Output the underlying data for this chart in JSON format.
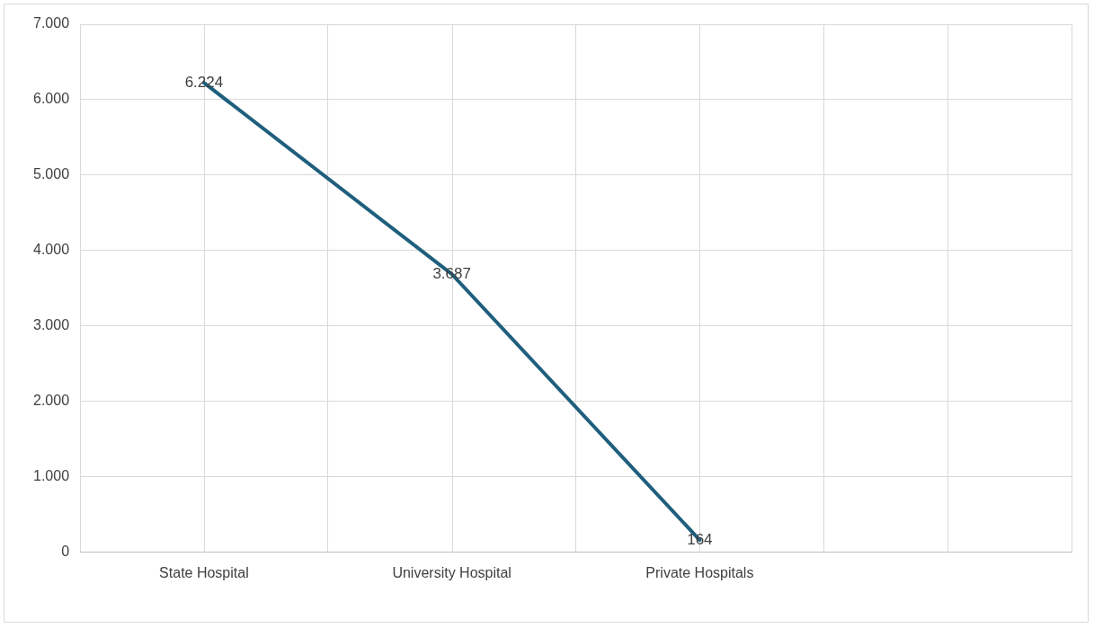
{
  "chart_data": {
    "type": "line",
    "categories": [
      "State Hospital",
      "University Hospital",
      "Private Hospitals",
      null
    ],
    "series": [
      {
        "color": "#1f5f7d",
        "values": [
          6224,
          3687,
          164,
          null
        ]
      }
    ],
    "value_labels": [
      "6.224",
      "3.687",
      "164",
      null
    ],
    "ylim": [
      0,
      7000
    ],
    "yticks": [
      {
        "value": 0,
        "label": "0"
      },
      {
        "value": 1000,
        "label": "1.000"
      },
      {
        "value": 2000,
        "label": "2.000"
      },
      {
        "value": 3000,
        "label": "3.000"
      },
      {
        "value": 4000,
        "label": "4.000"
      },
      {
        "value": 5000,
        "label": "5.000"
      },
      {
        "value": 6000,
        "label": "6.000"
      },
      {
        "value": 7000,
        "label": "7.000"
      }
    ],
    "grid": true,
    "legend": false,
    "marker": "none",
    "line_style": "solid"
  }
}
